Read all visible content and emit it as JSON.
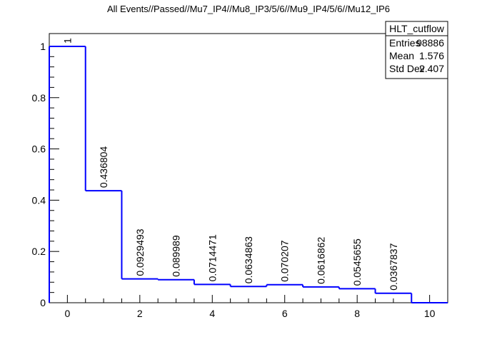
{
  "chart_data": {
    "type": "histogram",
    "title": "All Events//Passed//Mu7_IP4//Mu8_IP3/5/6//Mu9_IP4/5/6//Mu12_IP6",
    "bins": [
      -0.5,
      0.5,
      1.5,
      2.5,
      3.5,
      4.5,
      5.5,
      6.5,
      7.5,
      8.5,
      9.5,
      10.5
    ],
    "values": [
      1,
      0.436804,
      0.0929493,
      0.089989,
      0.0714471,
      0.0634863,
      0.070207,
      0.0616862,
      0.0545655,
      0.0367837,
      0
    ],
    "value_labels": [
      "1",
      "0.436804",
      "0.0929493",
      "0.089989",
      "0.0714471",
      "0.0634863",
      "0.070207",
      "0.0616862",
      "0.0545655",
      "0.0367837",
      null
    ],
    "color": "#0000ff",
    "xlim": [
      -0.5,
      10.5
    ],
    "xticks": [
      0,
      2,
      4,
      6,
      8,
      10
    ],
    "ylim": [
      0,
      1.05
    ],
    "yticks": [
      0,
      0.2,
      0.4,
      0.6,
      0.8,
      1
    ],
    "stats": {
      "title": "HLT_cutflow",
      "rows": [
        [
          "Entries",
          "98886"
        ],
        [
          "Mean",
          "1.576"
        ],
        [
          "Std Dev",
          "2.407"
        ]
      ]
    }
  }
}
